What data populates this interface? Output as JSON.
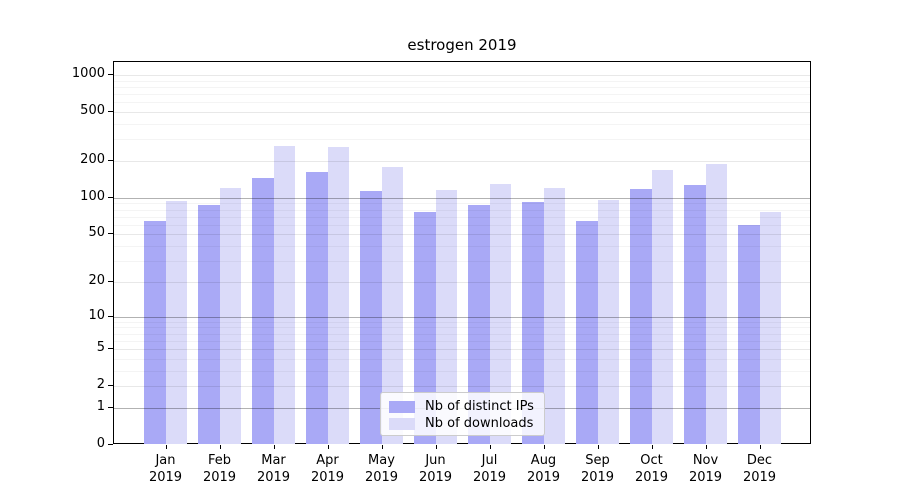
{
  "chart_data": {
    "type": "bar",
    "title": "estrogen 2019",
    "categories": [
      "Jan",
      "Feb",
      "Mar",
      "Apr",
      "May",
      "Jun",
      "Jul",
      "Aug",
      "Sep",
      "Oct",
      "Nov",
      "Dec"
    ],
    "category_year": "2019",
    "series": [
      {
        "name": "Nb of distinct IPs",
        "color": "#a9a9f6",
        "values": [
          65,
          88,
          146,
          164,
          113,
          77,
          88,
          92,
          65,
          118,
          128,
          60
        ]
      },
      {
        "name": "Nb of downloads",
        "color": "#dbdbf9",
        "values": [
          94,
          120,
          265,
          260,
          180,
          115,
          130,
          121,
          96,
          170,
          190,
          76
        ]
      }
    ],
    "y_axis": {
      "scale": "log1p",
      "ticks": [
        0,
        1,
        2,
        5,
        10,
        20,
        50,
        100,
        200,
        500,
        1000
      ],
      "emphasized_ticks": [
        1,
        10,
        100
      ],
      "range": [
        0,
        1270
      ]
    },
    "x_axis": {
      "tick_label_lines": 2
    },
    "legend": {
      "position": "lower-center",
      "entries": [
        "Nb of distinct IPs",
        "Nb of downloads"
      ]
    },
    "grid": true
  }
}
